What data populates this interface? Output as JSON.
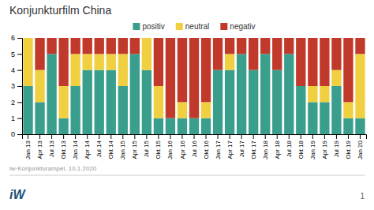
{
  "chart_data": {
    "type": "bar",
    "stacked": true,
    "title": "Konjunkturfilm China",
    "categories": [
      "Jan 13",
      "Apr 13",
      "Jul 13",
      "Okt 13",
      "Jan 14",
      "Apr 14",
      "Jul 14",
      "Okt 14",
      "Jan 15",
      "Apr 15",
      "Jul 15",
      "Okt 15",
      "Jan 16",
      "Apr 16",
      "Jul 16",
      "Okt 16",
      "Jan 17",
      "Apr 17",
      "Jul 17",
      "Okt 17",
      "Jan 18",
      "Apr 18",
      "Jul 18",
      "Okt 18",
      "Jan 19",
      "Apr 19",
      "Jul 19",
      "Okt 19",
      "Jan 20"
    ],
    "series": [
      {
        "name": "positiv",
        "color": "#3a9e8d",
        "values": [
          3,
          2,
          5,
          1,
          3,
          4,
          4,
          4,
          3,
          5,
          4,
          1,
          1,
          1,
          1,
          1,
          4,
          4,
          5,
          4,
          5,
          4,
          5,
          3,
          2,
          2,
          3,
          1,
          1
        ]
      },
      {
        "name": "neutral",
        "color": "#f0d040",
        "values": [
          3,
          2,
          0,
          2,
          2,
          1,
          1,
          1,
          2,
          0,
          2,
          2,
          0,
          1,
          0,
          1,
          0,
          1,
          0,
          0,
          0,
          0,
          0,
          0,
          1,
          1,
          1,
          1,
          4
        ]
      },
      {
        "name": "negativ",
        "color": "#c0392b",
        "values": [
          0,
          2,
          1,
          3,
          1,
          1,
          1,
          1,
          1,
          1,
          0,
          3,
          5,
          4,
          5,
          4,
          2,
          1,
          1,
          2,
          1,
          2,
          1,
          3,
          3,
          3,
          2,
          4,
          1
        ]
      }
    ],
    "ylim": [
      0,
      6
    ],
    "yticks": [
      0,
      1,
      2,
      3,
      4,
      5,
      6
    ],
    "grid": false,
    "legend": "top",
    "annotations": [
      "iw·Konjunkturampel, 10.1.2020",
      "iW",
      "1"
    ]
  }
}
